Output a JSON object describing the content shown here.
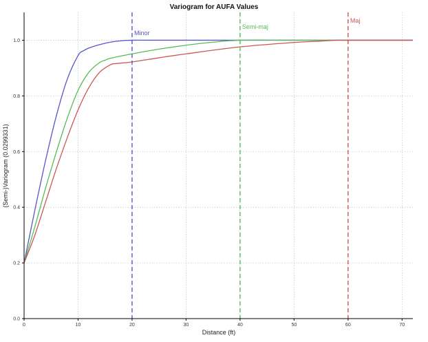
{
  "chart_data": {
    "type": "line",
    "title": "Variogram for AUFA Values",
    "xlabel": "Distance (ft)",
    "ylabel": "(Semi-)Variogram (0.0299331)",
    "xlim": [
      0,
      72
    ],
    "ylim": [
      0,
      1.1
    ],
    "grid": true,
    "x_ticks": [
      0,
      10,
      20,
      30,
      40,
      50,
      60,
      70
    ],
    "y_ticks": [
      0.0,
      0.2,
      0.4,
      0.6,
      0.8,
      1.0
    ],
    "x_tick_labels": [
      "0",
      "10",
      "20",
      "30",
      "40",
      "50",
      "60",
      "70"
    ],
    "y_tick_labels": [
      "0.0",
      "0.2",
      "0.4",
      "0.6",
      "0.8",
      "1.0"
    ],
    "series": [
      {
        "color": "#5555cc",
        "x": [
          0,
          2,
          4,
          6,
          8,
          10,
          11,
          12,
          14,
          16,
          18,
          20,
          25,
          30,
          40,
          50,
          60,
          72
        ],
        "y": [
          0.2,
          0.39,
          0.57,
          0.73,
          0.86,
          0.945,
          0.962,
          0.972,
          0.984,
          0.993,
          0.998,
          1.0,
          1.0,
          1.0,
          1.0,
          1.0,
          1.0,
          1.0
        ]
      },
      {
        "color": "#55bb55",
        "x": [
          0,
          2,
          4,
          6,
          8,
          10,
          12,
          14,
          15,
          16,
          20,
          25,
          30,
          35,
          40,
          50,
          60,
          72
        ],
        "y": [
          0.2,
          0.33,
          0.47,
          0.6,
          0.72,
          0.82,
          0.885,
          0.92,
          0.928,
          0.935,
          0.951,
          0.968,
          0.982,
          0.993,
          1.0,
          1.0,
          1.0,
          1.0
        ]
      },
      {
        "color": "#cc5555",
        "x": [
          0,
          2,
          4,
          6,
          8,
          10,
          12,
          14,
          16,
          17,
          20,
          25,
          30,
          40,
          50,
          55,
          58,
          60,
          72
        ],
        "y": [
          0.2,
          0.3,
          0.42,
          0.54,
          0.65,
          0.75,
          0.83,
          0.885,
          0.912,
          0.916,
          0.922,
          0.937,
          0.951,
          0.976,
          0.992,
          0.997,
          1.0,
          1.0,
          1.0
        ]
      }
    ],
    "annotations": [
      {
        "label": "Minor",
        "x": 20,
        "color": "#5555cc"
      },
      {
        "label": "Semi-maj",
        "x": 40,
        "color": "#55bb55"
      },
      {
        "label": "Maj",
        "x": 60,
        "color": "#cc5555"
      }
    ]
  }
}
